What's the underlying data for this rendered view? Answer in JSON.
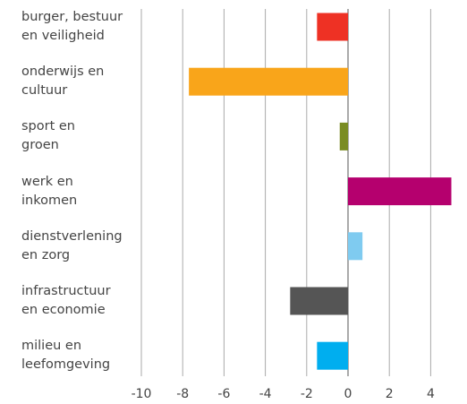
{
  "chart_data": {
    "type": "hbar",
    "categories": [
      "burger, bestuur\nen veiligheid",
      "onderwijs en\ncultuur",
      "sport en\ngroen",
      "werk en\ninkomen",
      "dienstverlening\nen zorg",
      "infrastructuur\nen economie",
      "milieu en\nleefomgeving"
    ],
    "values": [
      -1.5,
      -7.7,
      -0.4,
      5.0,
      0.7,
      -2.8,
      -1.5
    ],
    "colors": [
      "#ee3124",
      "#f9a51a",
      "#7a8c24",
      "#b5006e",
      "#7fcbf0",
      "#555555",
      "#00aeef"
    ],
    "xlim": [
      -10,
      5
    ],
    "xticks": [
      -10,
      -8,
      -6,
      -4,
      -2,
      0,
      2,
      4
    ],
    "grid": true
  }
}
